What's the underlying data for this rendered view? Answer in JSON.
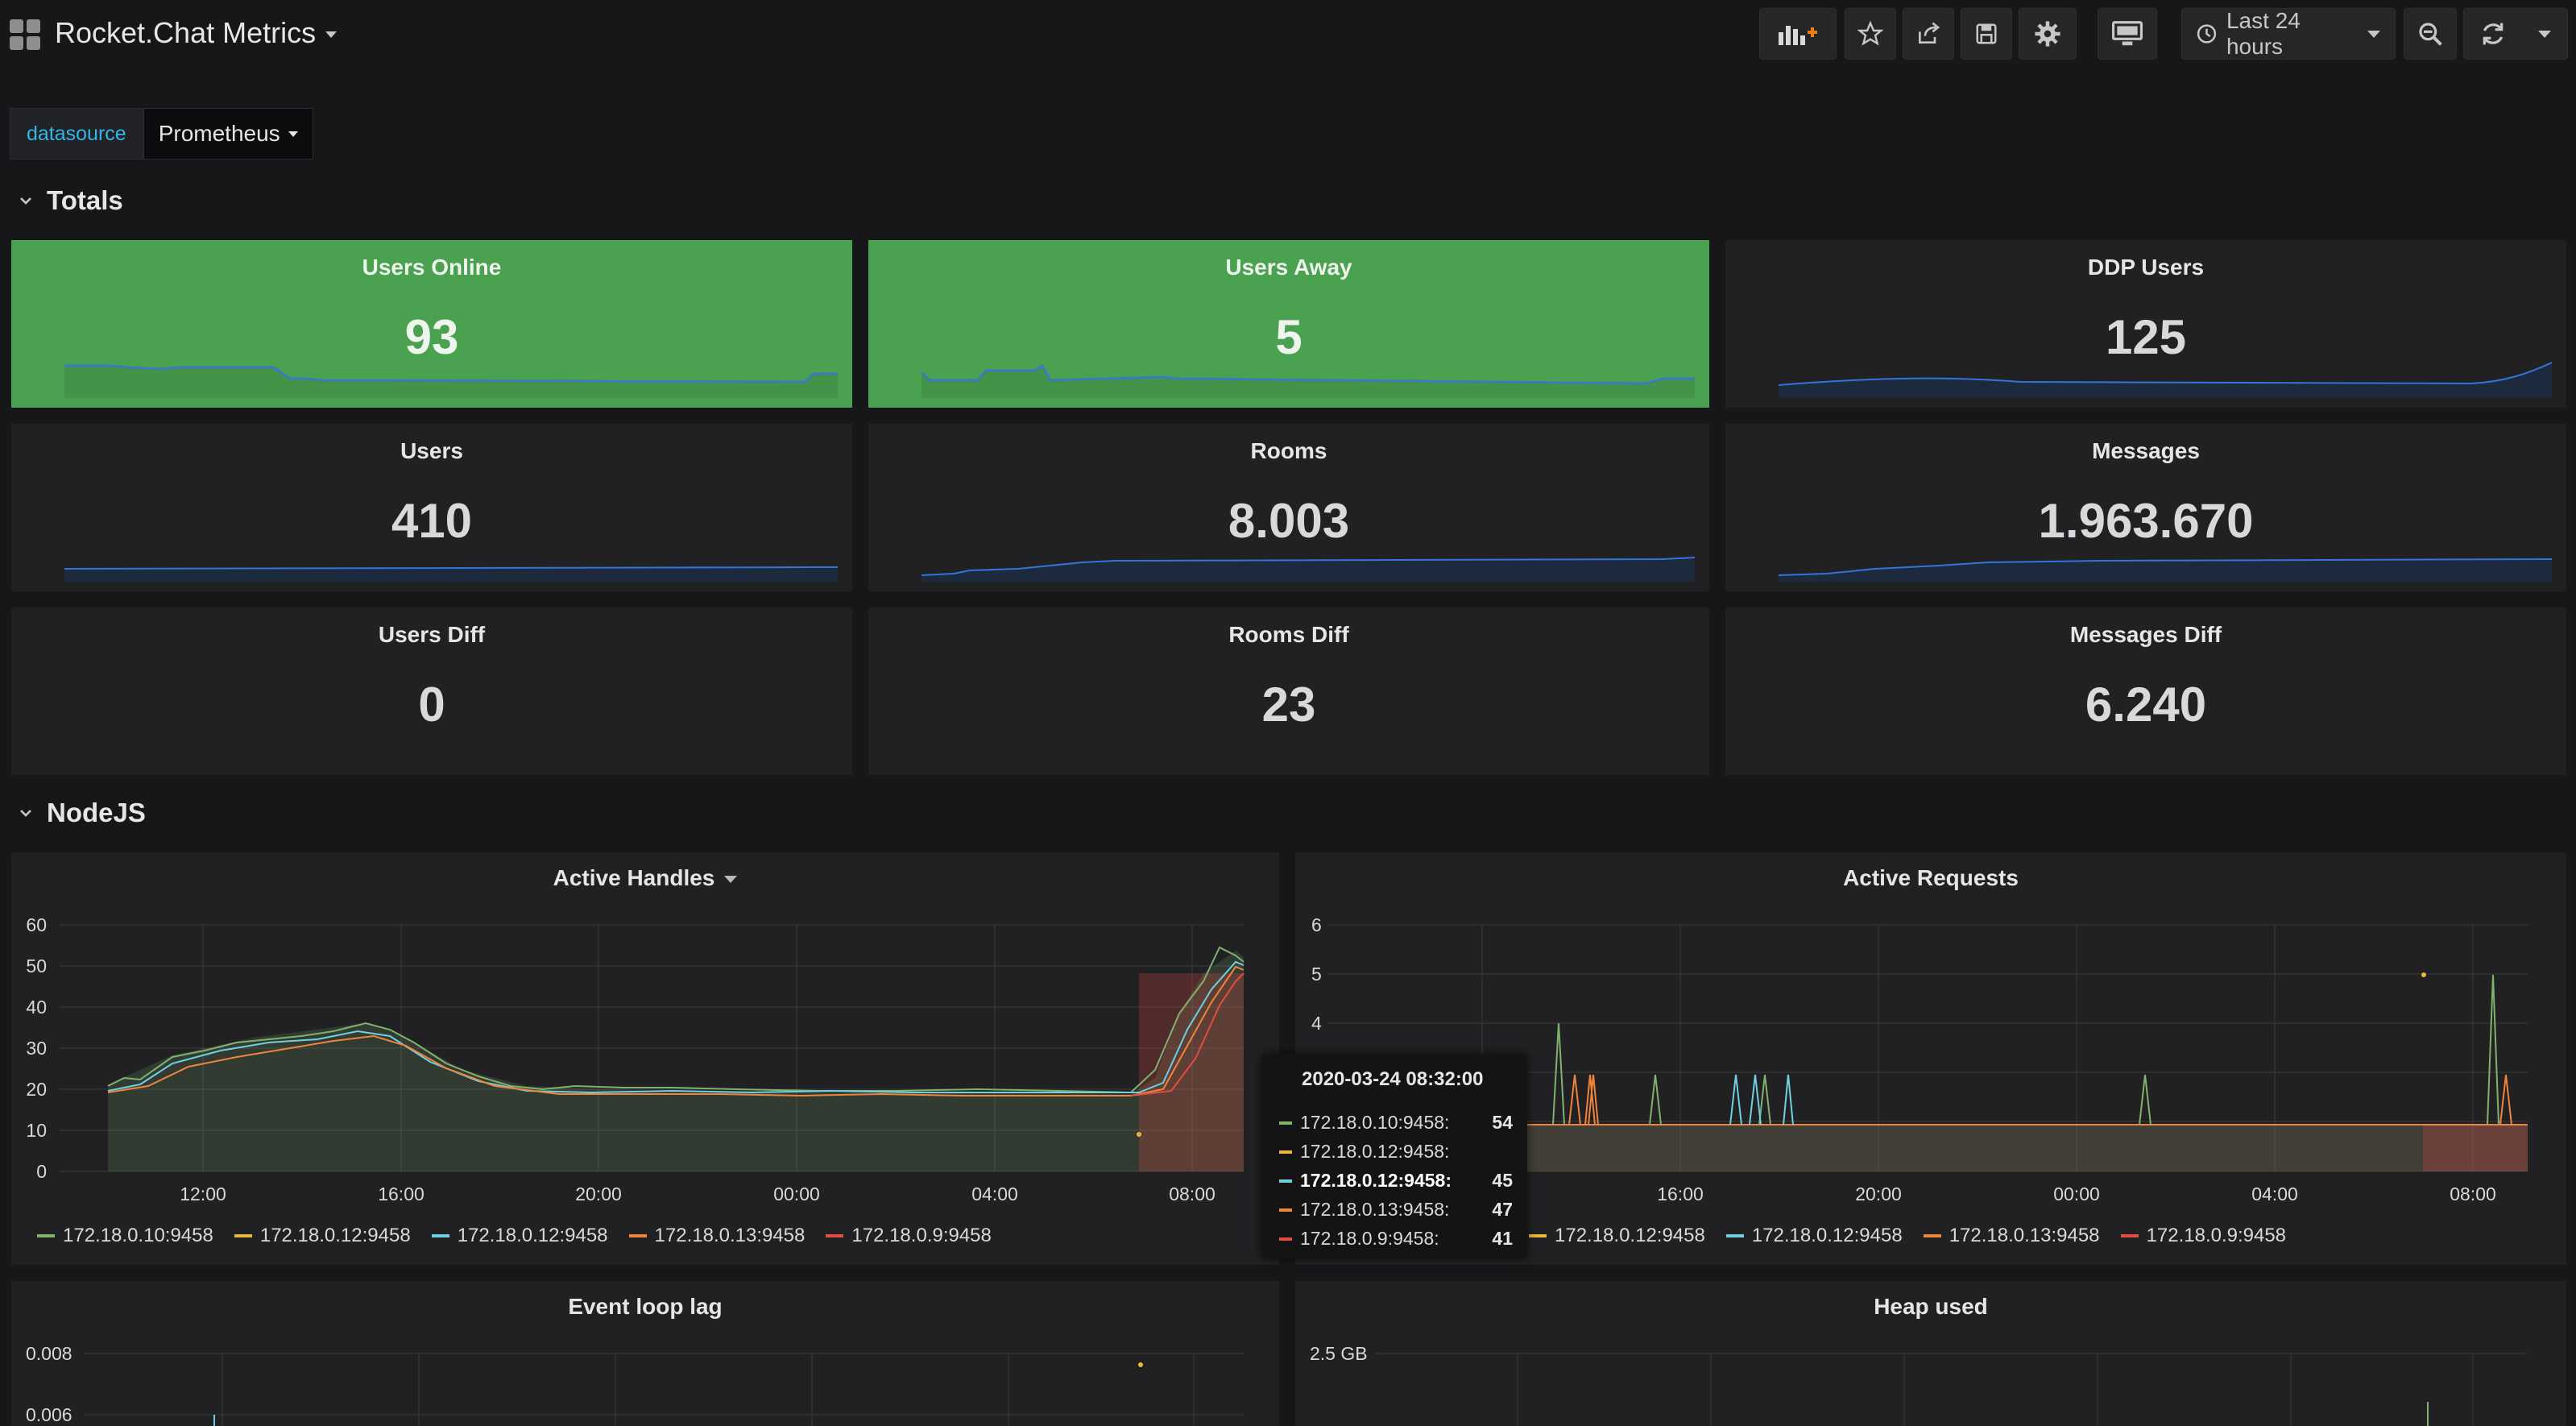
{
  "header": {
    "title": "Rocket.Chat Metrics",
    "time_range": "Last 24 hours",
    "icons": [
      "add-panel-icon",
      "star-icon",
      "share-icon",
      "save-icon",
      "settings-icon",
      "tv-mode-icon",
      "clock-icon",
      "zoom-out-icon",
      "refresh-icon",
      "caret-down-icon"
    ]
  },
  "variables": {
    "datasource_label": "datasource",
    "datasource_value": "Prometheus"
  },
  "rows": {
    "totals": "Totals",
    "nodejs": "NodeJS"
  },
  "stats": [
    {
      "title": "Users Online",
      "value": "93",
      "color": "green"
    },
    {
      "title": "Users Away",
      "value": "5",
      "color": "green"
    },
    {
      "title": "DDP Users",
      "value": "125"
    },
    {
      "title": "Users",
      "value": "410"
    },
    {
      "title": "Rooms",
      "value": "8.003"
    },
    {
      "title": "Messages",
      "value": "1.963.670"
    },
    {
      "title": "Users Diff",
      "value": "0"
    },
    {
      "title": "Rooms Diff",
      "value": "23"
    },
    {
      "title": "Messages Diff",
      "value": "6.240"
    }
  ],
  "colors": {
    "green": "#4aa14f",
    "sparkline": "#3274d9",
    "series_10": "#7eb26d",
    "series_12_yellow": "#eab839",
    "series_12_blue": "#6ed0e0",
    "series_13": "#ef843c",
    "series_9": "#e24d42"
  },
  "graphs": {
    "active_handles": {
      "title": "Active Handles",
      "y_ticks": [
        "0",
        "10",
        "20",
        "30",
        "40",
        "50",
        "60"
      ],
      "x_ticks": [
        "12:00",
        "16:00",
        "20:00",
        "00:00",
        "04:00",
        "08:00"
      ]
    },
    "active_requests": {
      "title": "Active Requests",
      "y_ticks": [
        "4",
        "5",
        "6"
      ],
      "x_ticks": [
        "16:00",
        "20:00",
        "00:00",
        "04:00",
        "08:00"
      ]
    },
    "event_loop_lag": {
      "title": "Event loop lag",
      "y_ticks": [
        "0.006",
        "0.008"
      ]
    },
    "heap_used": {
      "title": "Heap used",
      "y_ticks": [
        "2.5 GB"
      ]
    }
  },
  "legend": [
    {
      "label": "172.18.0.10:9458",
      "color": "#7eb26d"
    },
    {
      "label": "172.18.0.12:9458",
      "color": "#eab839"
    },
    {
      "label": "172.18.0.12:9458",
      "color": "#6ed0e0"
    },
    {
      "label": "172.18.0.13:9458",
      "color": "#ef843c"
    },
    {
      "label": "172.18.0.9:9458",
      "color": "#e24d42"
    }
  ],
  "legend_requests": [
    {
      "label": "172.18.0.12:9458",
      "color": "#eab839"
    },
    {
      "label": "172.18.0.12:9458",
      "color": "#6ed0e0"
    },
    {
      "label": "172.18.0.13:9458",
      "color": "#ef843c"
    },
    {
      "label": "172.18.0.9:9458",
      "color": "#e24d42"
    }
  ],
  "tooltip": {
    "time": "2020-03-24 08:32:00",
    "rows": [
      {
        "label": "172.18.0.10:9458:",
        "value": "54",
        "color": "#7eb26d"
      },
      {
        "label": "172.18.0.12:9458:",
        "value": "",
        "color": "#eab839"
      },
      {
        "label": "172.18.0.12:9458:",
        "value": "45",
        "color": "#6ed0e0",
        "active": true
      },
      {
        "label": "172.18.0.13:9458:",
        "value": "47",
        "color": "#ef843c"
      },
      {
        "label": "172.18.0.9:9458:",
        "value": "41",
        "color": "#e24d42"
      }
    ]
  }
}
